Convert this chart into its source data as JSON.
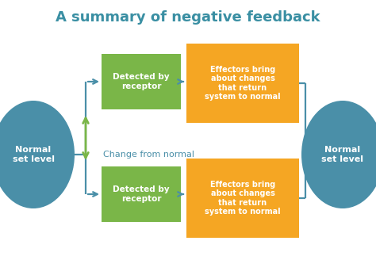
{
  "title": "A summary of negative feedback",
  "title_color": "#3a8fa3",
  "title_fontsize": 13,
  "background_color": "#ffffff",
  "circle_color": "#4a8fa8",
  "circle_text_color": "#ffffff",
  "green_box_color": "#7ab648",
  "orange_box_color": "#f5a623",
  "box_text_color": "#ffffff",
  "arrow_color": "#4a8fa8",
  "green_arrow_color": "#7ab648",
  "center_text": "Change from normal",
  "center_text_color": "#4a8fa8",
  "left_circle_text": "Normal\nset level",
  "right_circle_text": "Normal\nset level",
  "green_box_text": "Detected by\nreceptor",
  "orange_box_text": "Effectors bring\nabout changes\nthat return\nsystem to normal"
}
